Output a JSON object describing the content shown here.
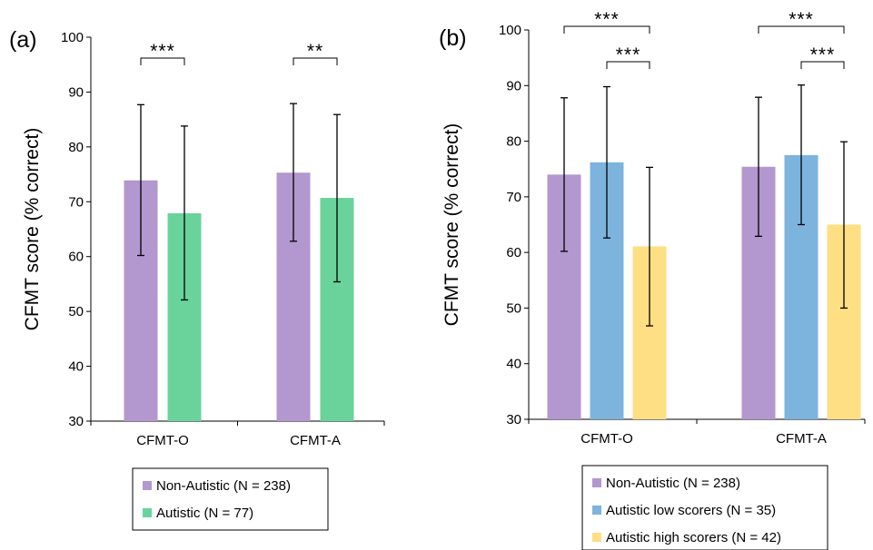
{
  "chart_data": [
    {
      "type": "bar",
      "panel_label": "(a)",
      "ylabel": "CFMT score (% correct)",
      "ylim": [
        30,
        100
      ],
      "yticks": [
        30,
        40,
        50,
        60,
        70,
        80,
        90,
        100
      ],
      "categories": [
        "CFMT-O",
        "CFMT-A"
      ],
      "series": [
        {
          "name": "Non-Autistic (N = 238)",
          "color": "#b397cf",
          "values": [
            73.9,
            75.3
          ],
          "err_low": [
            60.2,
            62.8
          ],
          "err_high": [
            87.7,
            87.9
          ]
        },
        {
          "name": "Autistic (N = 77)",
          "color": "#69d39b",
          "values": [
            67.9,
            70.7
          ],
          "err_low": [
            52.1,
            55.4
          ],
          "err_high": [
            83.8,
            85.9
          ]
        }
      ],
      "significance": [
        {
          "category": 0,
          "from": 0,
          "to": 1,
          "label": "***"
        },
        {
          "category": 1,
          "from": 0,
          "to": 1,
          "label": "**"
        }
      ],
      "legend_position": "bottom"
    },
    {
      "type": "bar",
      "panel_label": "(b)",
      "ylabel": "CFMT score (% correct)",
      "ylim": [
        30,
        100
      ],
      "yticks": [
        30,
        40,
        50,
        60,
        70,
        80,
        90,
        100
      ],
      "categories": [
        "CFMT-O",
        "CFMT-A"
      ],
      "series": [
        {
          "name": "Non-Autistic (N = 238)",
          "color": "#b397cf",
          "values": [
            74.0,
            75.4
          ],
          "err_low": [
            60.2,
            62.9
          ],
          "err_high": [
            87.8,
            87.9
          ]
        },
        {
          "name": "Autistic low scorers (N = 35)",
          "color": "#7cb4dd",
          "values": [
            76.2,
            77.5
          ],
          "err_low": [
            62.6,
            65.0
          ],
          "err_high": [
            89.8,
            90.1
          ]
        },
        {
          "name": "Autistic high scorers (N = 42)",
          "color": "#fedf83",
          "values": [
            61.1,
            65.0
          ],
          "err_low": [
            46.8,
            50.0
          ],
          "err_high": [
            75.3,
            79.9
          ]
        }
      ],
      "significance": [
        {
          "category": 0,
          "from": 0,
          "to": 2,
          "label": "***"
        },
        {
          "category": 0,
          "from": 1,
          "to": 2,
          "label": "***"
        },
        {
          "category": 1,
          "from": 0,
          "to": 2,
          "label": "***"
        },
        {
          "category": 1,
          "from": 1,
          "to": 2,
          "label": "***"
        }
      ],
      "legend_position": "bottom"
    }
  ]
}
